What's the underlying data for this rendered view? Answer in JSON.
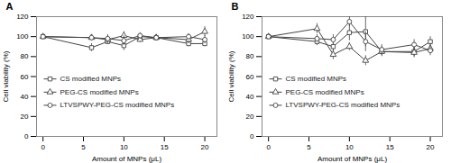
{
  "chart_data": [
    {
      "type": "line",
      "title": "A",
      "x": [
        0,
        6,
        8,
        10,
        12,
        14,
        18,
        20
      ],
      "xlabel": "Amount of MNPs (μL)",
      "ylabel": "Cell viability (%)",
      "xlim": [
        -0.8,
        21.5
      ],
      "xticks": [
        0,
        5,
        10,
        15,
        20
      ],
      "ylim": [
        0,
        120
      ],
      "yticks": [
        0,
        20,
        40,
        60,
        80,
        100,
        120
      ],
      "grid": false,
      "legend": "left",
      "series": [
        {
          "name": "CS modified MNPs",
          "color": "#444444",
          "marker": "square",
          "values": [
            100,
            89,
            95,
            91,
            100,
            99,
            93,
            93
          ],
          "yerr": [
            2,
            4,
            3,
            5,
            3,
            3,
            3,
            3
          ]
        },
        {
          "name": "PEG-CS modified MNPs",
          "color": "#444444",
          "marker": "triangle",
          "values": [
            100,
            99,
            97,
            101,
            97,
            99,
            97,
            105
          ],
          "yerr": [
            2,
            3,
            4,
            4,
            3,
            3,
            4,
            5
          ]
        },
        {
          "name": "LTVSPWY-PEG-CS modified MNPs",
          "color": "#444444",
          "marker": "circle",
          "values": [
            100,
            99,
            98,
            96,
            101,
            99,
            100,
            97
          ],
          "yerr": [
            2,
            3,
            4,
            5,
            3,
            3,
            3,
            4
          ]
        }
      ]
    },
    {
      "type": "line",
      "title": "B",
      "x": [
        0,
        6,
        8,
        10,
        12,
        14,
        18,
        20
      ],
      "xlabel": "Amount of MNPs (μL)",
      "ylabel": "Cell viability (%)",
      "xlim": [
        -0.8,
        21.5
      ],
      "xticks": [
        0,
        5,
        10,
        15,
        20
      ],
      "ylim": [
        0,
        120
      ],
      "yticks": [
        0,
        20,
        40,
        60,
        80,
        100,
        120
      ],
      "grid": false,
      "legend": "left",
      "series": [
        {
          "name": "CS modified MNPs",
          "color": "#444444",
          "marker": "square",
          "values": [
            100,
            95,
            90,
            104,
            105,
            85,
            85,
            95
          ],
          "yerr": [
            2,
            4,
            5,
            8,
            15,
            5,
            5,
            5
          ]
        },
        {
          "name": "PEG-CS modified MNPs",
          "color": "#444444",
          "marker": "triangle",
          "values": [
            100,
            108,
            82,
            90,
            76,
            85,
            84,
            88
          ],
          "yerr": [
            2,
            5,
            5,
            4,
            5,
            4,
            5,
            5
          ]
        },
        {
          "name": "LTVSPWY-PEG-CS modified MNPs",
          "color": "#444444",
          "marker": "circle",
          "values": [
            100,
            98,
            97,
            115,
            95,
            87,
            92,
            86
          ],
          "yerr": [
            2,
            4,
            5,
            5,
            10,
            5,
            5,
            5
          ]
        }
      ]
    }
  ]
}
